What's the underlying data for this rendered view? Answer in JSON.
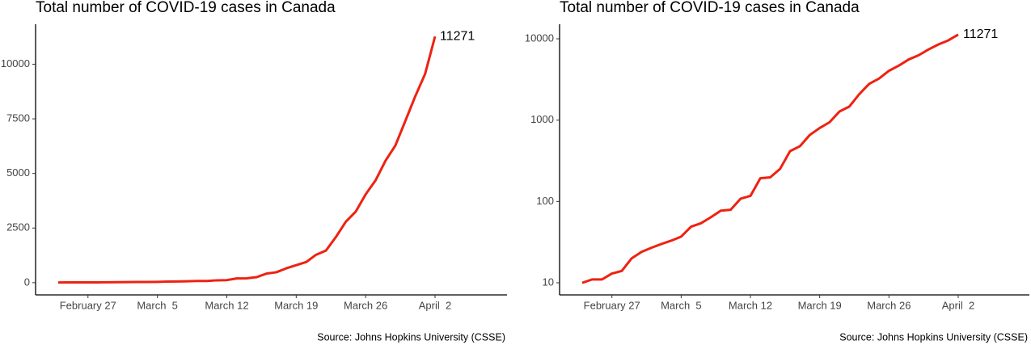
{
  "chart_data": [
    {
      "type": "line",
      "title": "Total number of COVID-19 cases in Canada",
      "caption": "Source: Johns Hopkins University (CSSE)",
      "x": [
        "February 24",
        "February 25",
        "February 26",
        "February 27",
        "February 28",
        "February 29",
        "March 1",
        "March 2",
        "March 3",
        "March 4",
        "March 5",
        "March 6",
        "March 7",
        "March 8",
        "March 9",
        "March 10",
        "March 11",
        "March 12",
        "March 13",
        "March 14",
        "March 15",
        "March 16",
        "March 17",
        "March 18",
        "March 19",
        "March 20",
        "March 21",
        "March 22",
        "March 23",
        "March 24",
        "March 25",
        "March 26",
        "March 27",
        "March 28",
        "March 29",
        "March 30",
        "March 31",
        "April 1",
        "April 2"
      ],
      "values": [
        10,
        11,
        11,
        13,
        14,
        20,
        24,
        27,
        30,
        33,
        37,
        49,
        54,
        64,
        77,
        79,
        108,
        117,
        193,
        198,
        252,
        415,
        478,
        657,
        800,
        943,
        1277,
        1469,
        2088,
        2790,
        3251,
        4042,
        4682,
        5576,
        6280,
        7398,
        8527,
        9560,
        11271
      ],
      "color": "#ee2211",
      "end_label": true,
      "log_scale": false,
      "ylim": [
        -560,
        11830
      ],
      "yticks": [
        0,
        2500,
        5000,
        7500,
        10000
      ],
      "xticks": [
        {
          "value": "February 27",
          "label": "February 27"
        },
        {
          "value": "March 5",
          "label": "March  5"
        },
        {
          "value": "March 12",
          "label": "March 12"
        },
        {
          "value": "March 19",
          "label": "March 19"
        },
        {
          "value": "March 26",
          "label": "March 26"
        },
        {
          "value": "April 2",
          "label": "April  2"
        }
      ]
    },
    {
      "type": "line",
      "title": "Total number of COVID-19 cases in Canada",
      "caption": "Source: Johns Hopkins University (CSSE)",
      "x": [
        "February 24",
        "February 25",
        "February 26",
        "February 27",
        "February 28",
        "February 29",
        "March 1",
        "March 2",
        "March 3",
        "March 4",
        "March 5",
        "March 6",
        "March 7",
        "March 8",
        "March 9",
        "March 10",
        "March 11",
        "March 12",
        "March 13",
        "March 14",
        "March 15",
        "March 16",
        "March 17",
        "March 18",
        "March 19",
        "March 20",
        "March 21",
        "March 22",
        "March 23",
        "March 24",
        "March 25",
        "March 26",
        "March 27",
        "March 28",
        "March 29",
        "March 30",
        "March 31",
        "April 1",
        "April 2"
      ],
      "values": [
        10,
        11,
        11,
        13,
        14,
        20,
        24,
        27,
        30,
        33,
        37,
        49,
        54,
        64,
        77,
        79,
        108,
        117,
        193,
        198,
        252,
        415,
        478,
        657,
        800,
        943,
        1277,
        1469,
        2088,
        2790,
        3251,
        4042,
        4682,
        5576,
        6280,
        7398,
        8527,
        9560,
        11271
      ],
      "color": "#ee2211",
      "end_label": true,
      "log_scale": true,
      "ylim": [
        7.1,
        15100
      ],
      "yticks": [
        10,
        100,
        1000,
        10000
      ],
      "xticks": [
        {
          "value": "February 27",
          "label": "February 27"
        },
        {
          "value": "March 5",
          "label": "March  5"
        },
        {
          "value": "March 12",
          "label": "March 12"
        },
        {
          "value": "March 19",
          "label": "March 19"
        },
        {
          "value": "March 26",
          "label": "March 26"
        },
        {
          "value": "April 2",
          "label": "April  2"
        }
      ]
    }
  ]
}
